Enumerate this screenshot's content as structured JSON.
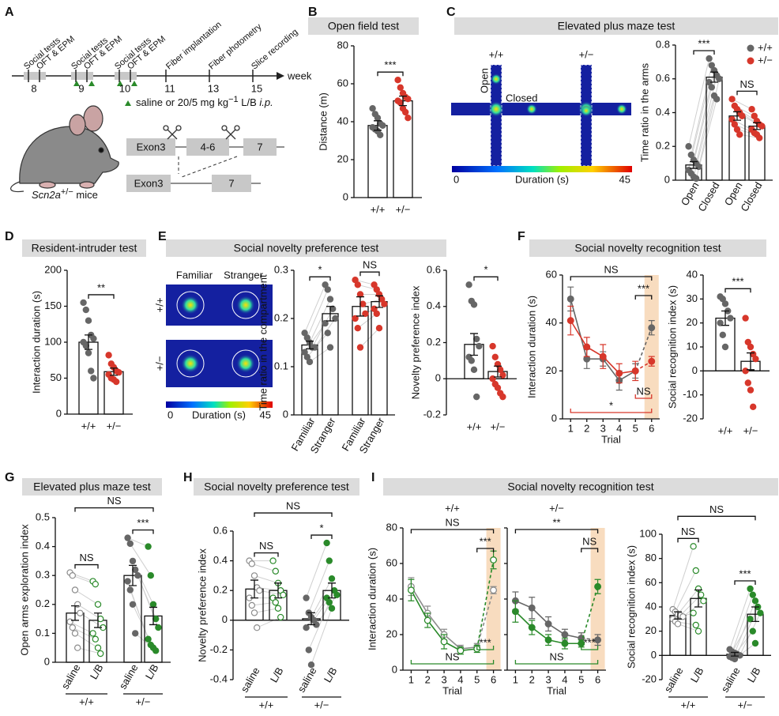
{
  "diagram": {
    "panel": "A",
    "timeline_labels": [
      "Social tests",
      "OFT & EPM",
      "Social tests",
      "OFT & EPM",
      "Social tests",
      "OFT & EPM",
      "Fiber implantation",
      "Fiber photometry",
      "Slice recording"
    ],
    "weeks": [
      "8",
      "9",
      "10",
      "11",
      "13",
      "15"
    ],
    "week_unit": "week",
    "treatment": [
      "saline or 20/5 mg kg",
      "−1",
      " L/B ",
      "i.p."
    ],
    "mouse": [
      "Scn2a",
      "+/−",
      " mice"
    ],
    "genes_top": [
      "Exon3",
      "4-6",
      "7"
    ],
    "genes_bottom": [
      "Exon3",
      "7"
    ]
  },
  "heatmaps": [
    {
      "panel": "C",
      "title": "Elevated plus maze test",
      "genotypes": [
        "+/+",
        "+/−"
      ],
      "arms": [
        "Open",
        "Closed"
      ],
      "colorbar": [
        "0",
        "Duration (s)",
        "45"
      ]
    },
    {
      "panel": "E",
      "title": "Social novelty preference test",
      "compartments": [
        "Familiar",
        "Stranger"
      ],
      "genotypes": [
        "+/+",
        "+/−"
      ],
      "colorbar": [
        "0",
        "Duration (s)",
        "45"
      ]
    }
  ],
  "chart_data": [
    {
      "type": "bar",
      "panel": "B",
      "title": "Open field test",
      "ylabel": "Distance (m)",
      "categories": [
        "+/+",
        "+/−"
      ],
      "values": [
        38,
        51
      ],
      "errors": [
        2.5,
        2.5
      ],
      "points": [
        [
          47,
          44,
          42,
          39,
          38,
          37,
          36,
          35,
          33
        ],
        [
          62,
          58,
          55,
          53,
          52,
          51,
          50,
          47,
          45,
          42
        ]
      ],
      "colors": [
        "#666666",
        "#d7372b"
      ],
      "hollow": [
        false,
        false
      ],
      "ylim": [
        0,
        80
      ],
      "yticks": [
        0,
        20,
        40,
        60,
        80
      ],
      "brackets": [
        {
          "label": "***",
          "from": 0,
          "to": 1
        }
      ]
    },
    {
      "type": "bar",
      "ylabel": "Time ratio in the arms",
      "categories": [
        "Open",
        "Closed",
        "Open",
        "Closed"
      ],
      "values": [
        0.09,
        0.61,
        0.38,
        0.32
      ],
      "errors": [
        0.02,
        0.03,
        0.025,
        0.02
      ],
      "points": [
        [
          0.2,
          0.15,
          0.12,
          0.1,
          0.08,
          0.06,
          0.04,
          0.02,
          0.01
        ],
        [
          0.72,
          0.68,
          0.65,
          0.62,
          0.6,
          0.58,
          0.55,
          0.5,
          0.48
        ],
        [
          0.48,
          0.44,
          0.42,
          0.4,
          0.38,
          0.36,
          0.33,
          0.3,
          0.27
        ],
        [
          0.42,
          0.38,
          0.35,
          0.33,
          0.32,
          0.3,
          0.28,
          0.27,
          0.25
        ]
      ],
      "colors": [
        "#666666",
        "#666666",
        "#d7372b",
        "#d7372b"
      ],
      "hollow": [
        false,
        false,
        false,
        false
      ],
      "paired": true,
      "rotated_labels": true,
      "legend": [
        {
          "name": "+/+",
          "color": "#666666"
        },
        {
          "name": "+/−",
          "color": "#d7372b"
        }
      ],
      "ylim": [
        0,
        0.8
      ],
      "yticks": [
        0,
        0.2,
        0.4,
        0.6,
        0.8
      ],
      "brackets": [
        {
          "label": "***",
          "from": 0,
          "to": 1
        },
        {
          "label": "NS",
          "from": 2,
          "to": 3
        }
      ]
    },
    {
      "type": "bar",
      "panel": "D",
      "title": "Resident-intruder test",
      "ylabel": "Interaction duration (s)",
      "categories": [
        "+/+",
        "+/−"
      ],
      "values": [
        100,
        59
      ],
      "errors": [
        10,
        5
      ],
      "points": [
        [
          155,
          145,
          130,
          110,
          105,
          100,
          95,
          85,
          60,
          50
        ],
        [
          82,
          70,
          65,
          60,
          58,
          55,
          50,
          48,
          45
        ]
      ],
      "colors": [
        "#666666",
        "#d7372b"
      ],
      "hollow": [
        false,
        false
      ],
      "ylim": [
        0,
        200
      ],
      "yticks": [
        0,
        50,
        100,
        150,
        200
      ],
      "brackets": [
        {
          "label": "**",
          "from": 0,
          "to": 1
        }
      ]
    },
    {
      "type": "bar",
      "ylabel": "Time ratio in the compartment",
      "categories": [
        "Familiar",
        "Stranger",
        "Familiar",
        "Stranger"
      ],
      "values": [
        0.145,
        0.21,
        0.225,
        0.235
      ],
      "errors": [
        0.008,
        0.015,
        0.02,
        0.012
      ],
      "points": [
        [
          0.17,
          0.16,
          0.15,
          0.14,
          0.14,
          0.13,
          0.12,
          0.11
        ],
        [
          0.27,
          0.26,
          0.24,
          0.22,
          0.2,
          0.19,
          0.17,
          0.14
        ],
        [
          0.28,
          0.27,
          0.25,
          0.23,
          0.21,
          0.2,
          0.18,
          0.14
        ],
        [
          0.27,
          0.26,
          0.25,
          0.24,
          0.23,
          0.22,
          0.21,
          0.18
        ]
      ],
      "colors": [
        "#666666",
        "#666666",
        "#d7372b",
        "#d7372b"
      ],
      "hollow": [
        false,
        false,
        false,
        false
      ],
      "paired": true,
      "rotated_labels": true,
      "ylim": [
        0,
        0.3
      ],
      "yticks": [
        0,
        0.1,
        0.2,
        0.3
      ],
      "brackets": [
        {
          "label": "*",
          "from": 0,
          "to": 1
        },
        {
          "label": "NS",
          "from": 2,
          "to": 3
        }
      ]
    },
    {
      "type": "bar",
      "ylabel": "Novelty preference index",
      "categories": [
        "+/+",
        "+/−"
      ],
      "values": [
        0.19,
        0.04
      ],
      "errors": [
        0.06,
        0.03
      ],
      "points": [
        [
          0.52,
          0.43,
          0.41,
          0.22,
          0.18,
          0.12,
          0.1,
          0.05,
          -0.1
        ],
        [
          0.18,
          0.12,
          0.08,
          0.05,
          0.02,
          0,
          -0.03,
          -0.05,
          -0.08,
          -0.1
        ]
      ],
      "colors": [
        "#666666",
        "#d7372b"
      ],
      "hollow": [
        false,
        false
      ],
      "ylim": [
        -0.2,
        0.6
      ],
      "yticks": [
        -0.2,
        0,
        0.2,
        0.4,
        0.6
      ],
      "brackets": [
        {
          "label": "*",
          "from": 0,
          "to": 1
        }
      ]
    },
    {
      "type": "line",
      "panel": "F",
      "title": "Social novelty recognition test",
      "ylabel": "Interaction duration (s)",
      "xlabel": "Trial",
      "x": [
        1,
        2,
        3,
        4,
        5,
        6
      ],
      "xlim": [
        0.5,
        6.5
      ],
      "xticks": [
        1,
        2,
        3,
        4,
        5,
        6
      ],
      "ylim": [
        0,
        60
      ],
      "yticks": [
        0,
        20,
        40,
        60
      ],
      "highlight": {
        "index": 5,
        "color": "#f8dcbf",
        "label_color": "#e0962a"
      },
      "series": [
        {
          "color": "#666666",
          "hollow": false,
          "values": [
            50,
            25,
            25,
            16,
            20,
            38
          ],
          "errors": [
            5,
            4,
            3,
            4,
            3,
            3
          ]
        },
        {
          "color": "#d7372b",
          "hollow": false,
          "values": [
            41,
            30,
            26,
            19,
            20,
            24
          ],
          "errors": [
            6,
            4,
            5,
            4,
            4,
            2
          ]
        }
      ],
      "brackets": [
        {
          "label": "NS",
          "from": 0,
          "to": 5,
          "side": "top"
        },
        {
          "label": "***",
          "from": 4,
          "to": 5,
          "side": "top"
        },
        {
          "label": "*",
          "from": 0,
          "to": 5,
          "side": "bottom",
          "color": "#d7372b"
        },
        {
          "label": "NS",
          "from": 4,
          "to": 5,
          "side": "bottom",
          "color": "#d7372b"
        }
      ]
    },
    {
      "type": "bar",
      "ylabel": "Social recognition index (s)",
      "categories": [
        "+/+",
        "+/−"
      ],
      "values": [
        22,
        4
      ],
      "errors": [
        3,
        3.5
      ],
      "points": [
        [
          31,
          30,
          28,
          25,
          22,
          20,
          15,
          10
        ],
        [
          22,
          12,
          10,
          7,
          5,
          0,
          -5,
          -8,
          -15
        ]
      ],
      "colors": [
        "#666666",
        "#d7372b"
      ],
      "hollow": [
        false,
        false
      ],
      "ylim": [
        -20,
        40
      ],
      "yticks": [
        -20,
        -10,
        0,
        10,
        20,
        30,
        40
      ],
      "brackets": [
        {
          "label": "***",
          "from": 0,
          "to": 1
        }
      ]
    },
    {
      "type": "bar",
      "panel": "G",
      "title": "Elevated plus maze test",
      "ylabel": "Open arms exploration index",
      "categories": [
        "saline",
        "L/B",
        "saline",
        "L/B"
      ],
      "values": [
        0.17,
        0.145,
        0.3,
        0.16
      ],
      "errors": [
        0.025,
        0.025,
        0.035,
        0.03
      ],
      "points": [
        [
          0.31,
          0.3,
          0.25,
          0.2,
          0.17,
          0.14,
          0.12,
          0.1,
          0.05
        ],
        [
          0.28,
          0.27,
          0.2,
          0.15,
          0.12,
          0.1,
          0.08,
          0.05,
          0.03
        ],
        [
          0.43,
          0.41,
          0.35,
          0.32,
          0.3,
          0.28,
          0.25,
          0.2,
          0.1
        ],
        [
          0.4,
          0.3,
          0.2,
          0.15,
          0.12,
          0.08,
          0.06,
          0.05,
          0.04
        ]
      ],
      "colors": [
        "#8c8c8c",
        "#2a8a2a",
        "#666666",
        "#2a8a2a"
      ],
      "hollow": [
        true,
        true,
        false,
        false
      ],
      "paired": true,
      "rotated_labels": true,
      "groups": [
        {
          "label": "+/+",
          "from": 0,
          "to": 1
        },
        {
          "label": "+/−",
          "from": 2,
          "to": 3
        }
      ],
      "ylim": [
        0,
        0.5
      ],
      "yticks": [
        0,
        0.1,
        0.2,
        0.3,
        0.4,
        0.5
      ],
      "brackets": [
        {
          "label": "NS",
          "from": 0,
          "to": 1
        },
        {
          "label": "***",
          "from": 2,
          "to": 3
        },
        {
          "label": "NS",
          "from": 0,
          "to": 3
        }
      ]
    },
    {
      "type": "bar",
      "panel": "H",
      "title": "Social novelty preference test",
      "ylabel": "Novelty preference index",
      "categories": [
        "saline",
        "L/B",
        "saline",
        "L/B"
      ],
      "values": [
        0.21,
        0.2,
        0.01,
        0.2
      ],
      "errors": [
        0.06,
        0.05,
        0.04,
        0.05
      ],
      "points": [
        [
          0.4,
          0.38,
          0.3,
          0.22,
          0.2,
          0.15,
          0.1,
          0.05,
          -0.05
        ],
        [
          0.4,
          0.33,
          0.25,
          0.2,
          0.17,
          0.15,
          0.12,
          0.08,
          0.02
        ],
        [
          0.15,
          0.05,
          0.02,
          0,
          -0.03,
          -0.05,
          -0.2,
          -0.3
        ],
        [
          0.52,
          0.4,
          0.28,
          0.2,
          0.17,
          0.15,
          0.12,
          0.08
        ]
      ],
      "colors": [
        "#8c8c8c",
        "#2a8a2a",
        "#666666",
        "#2a8a2a"
      ],
      "hollow": [
        true,
        true,
        false,
        false
      ],
      "paired": true,
      "rotated_labels": true,
      "groups": [
        {
          "label": "+/+",
          "from": 0,
          "to": 1
        },
        {
          "label": "+/−",
          "from": 2,
          "to": 3
        }
      ],
      "ylim": [
        -0.4,
        0.6
      ],
      "yticks": [
        -0.4,
        -0.2,
        0,
        0.2,
        0.4,
        0.6
      ],
      "brackets": [
        {
          "label": "NS",
          "from": 0,
          "to": 1
        },
        {
          "label": "*",
          "from": 2,
          "to": 3
        },
        {
          "label": "NS",
          "from": 0,
          "to": 3
        }
      ]
    },
    {
      "type": "line",
      "panel": "I",
      "title": "Social novelty recognition test",
      "subtitle": "+/+",
      "ylabel": "Interaction duration (s)",
      "xlabel": "Trial",
      "x": [
        1,
        2,
        3,
        4,
        5,
        6
      ],
      "xlim": [
        0.5,
        6.5
      ],
      "xticks": [
        1,
        2,
        3,
        4,
        5,
        6
      ],
      "ylim": [
        0,
        80
      ],
      "yticks": [
        0,
        20,
        40,
        60,
        80
      ],
      "highlight": {
        "index": 5,
        "color": "#f8dcbf",
        "label_color": "#e0962a"
      },
      "series": [
        {
          "color": "#8c8c8c",
          "hollow": true,
          "values": [
            47,
            32,
            20,
            12,
            13,
            45
          ],
          "errors": [
            5,
            4,
            3,
            2,
            2,
            2
          ]
        },
        {
          "color": "#2a8a2a",
          "hollow": true,
          "values": [
            45,
            28,
            16,
            11,
            12,
            62
          ],
          "errors": [
            6,
            4,
            4,
            2,
            2,
            5
          ]
        }
      ],
      "brackets": [
        {
          "label": "NS",
          "from": 0,
          "to": 5,
          "side": "top"
        },
        {
          "label": "***",
          "from": 4,
          "to": 5,
          "side": "top"
        },
        {
          "label": "NS",
          "from": 0,
          "to": 5,
          "side": "bottom",
          "color": "#2a8a2a"
        },
        {
          "label": "***",
          "from": 4,
          "to": 5,
          "side": "bottom",
          "color": "#2a8a2a"
        }
      ]
    },
    {
      "type": "line",
      "subtitle": "+/−",
      "xlabel": "Trial",
      "tick_labels": false,
      "x": [
        1,
        2,
        3,
        4,
        5,
        6
      ],
      "xlim": [
        0.5,
        6.5
      ],
      "xticks": [
        1,
        2,
        3,
        4,
        5,
        6
      ],
      "ylim": [
        0,
        80
      ],
      "yticks": [
        0,
        20,
        40,
        60,
        80
      ],
      "highlight": {
        "index": 5,
        "color": "#f8dcbf",
        "label_color": "#e0962a"
      },
      "series": [
        {
          "color": "#666666",
          "hollow": false,
          "values": [
            39,
            35,
            26,
            20,
            18,
            17
          ],
          "errors": [
            5,
            6,
            4,
            3,
            3,
            3
          ]
        },
        {
          "color": "#2a8a2a",
          "hollow": false,
          "values": [
            33,
            24,
            17,
            15,
            15,
            47
          ],
          "errors": [
            6,
            4,
            3,
            3,
            2,
            4
          ]
        }
      ],
      "brackets": [
        {
          "label": "**",
          "from": 0,
          "to": 5,
          "side": "top"
        },
        {
          "label": "NS",
          "from": 4,
          "to": 5,
          "side": "top"
        },
        {
          "label": "NS",
          "from": 0,
          "to": 5,
          "side": "bottom",
          "color": "#2a8a2a"
        },
        {
          "label": "***",
          "from": 4,
          "to": 5,
          "side": "bottom",
          "color": "#2a8a2a"
        }
      ]
    },
    {
      "type": "bar",
      "ylabel": "Social recognition index (s)",
      "categories": [
        "saline",
        "L/B",
        "saline",
        "L/B"
      ],
      "values": [
        33,
        47,
        1,
        34
      ],
      "errors": [
        3,
        7,
        1.5,
        6
      ],
      "points": [
        [
          38,
          36,
          34,
          33,
          32,
          30,
          28,
          26
        ],
        [
          90,
          70,
          55,
          50,
          45,
          35,
          25,
          20
        ],
        [
          5,
          3,
          2,
          1,
          0,
          -1,
          -2,
          -3
        ],
        [
          55,
          50,
          45,
          40,
          35,
          30,
          20,
          10
        ]
      ],
      "colors": [
        "#8c8c8c",
        "#2a8a2a",
        "#666666",
        "#2a8a2a"
      ],
      "hollow": [
        true,
        true,
        false,
        false
      ],
      "paired": true,
      "rotated_labels": true,
      "groups": [
        {
          "label": "+/+",
          "from": 0,
          "to": 1
        },
        {
          "label": "+/−",
          "from": 2,
          "to": 3
        }
      ],
      "ylim": [
        -20,
        100
      ],
      "yticks": [
        -20,
        0,
        20,
        40,
        60,
        80,
        100
      ],
      "brackets": [
        {
          "label": "NS",
          "from": 0,
          "to": 1
        },
        {
          "label": "***",
          "from": 2,
          "to": 3
        },
        {
          "label": "NS",
          "from": 0,
          "to": 3
        }
      ]
    }
  ]
}
